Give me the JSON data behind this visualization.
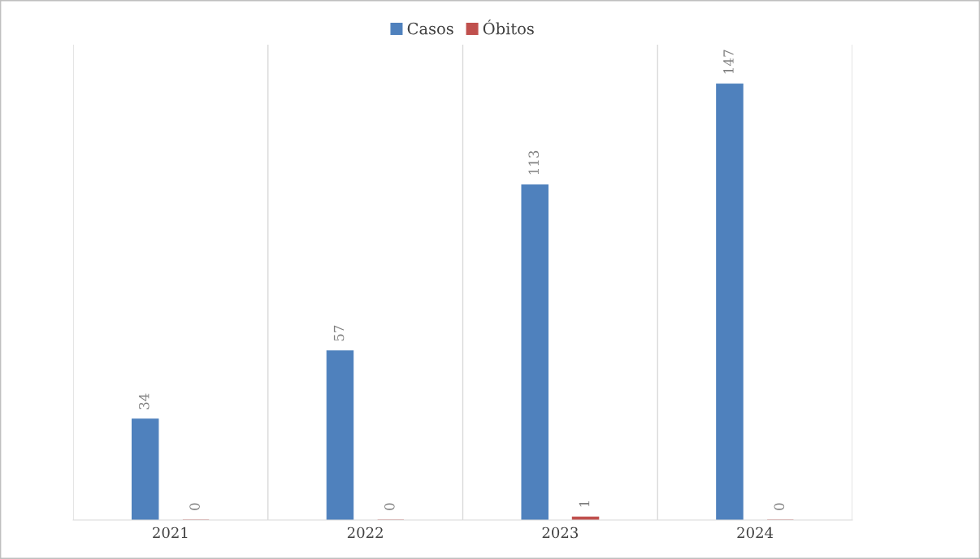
{
  "chart_data": {
    "type": "bar",
    "categories": [
      "2021",
      "2022",
      "2023",
      "2024"
    ],
    "series": [
      {
        "name": "Casos",
        "color": "#4f81bd",
        "values": [
          34,
          57,
          113,
          147
        ]
      },
      {
        "name": "Óbitos",
        "color": "#c0504d",
        "values": [
          0,
          0,
          1,
          0
        ]
      }
    ],
    "data_labels": true,
    "grid": "x",
    "legend": "top"
  }
}
